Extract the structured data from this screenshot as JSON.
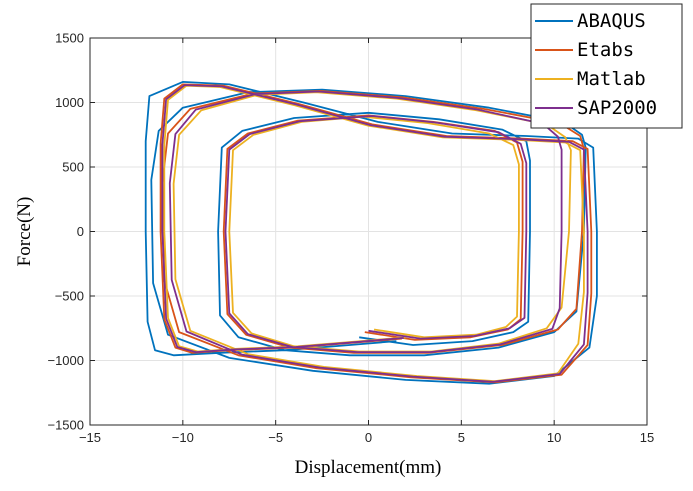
{
  "chart_data": {
    "type": "line",
    "title": "",
    "xlabel": "Displacement(mm)",
    "ylabel": "Force(N)",
    "xlim": [
      -15,
      15
    ],
    "ylim": [
      -1500,
      1500
    ],
    "xticks": [
      -15,
      -10,
      -5,
      0,
      5,
      10,
      15
    ],
    "xtick_labels": [
      "−15",
      "−10",
      "−5",
      "0",
      "5",
      "10",
      "15"
    ],
    "yticks": [
      -1500,
      -1000,
      -500,
      0,
      500,
      1000,
      1500
    ],
    "ytick_labels": [
      "−1500",
      "−1000",
      "−500",
      "0",
      "500",
      "1000",
      "1500"
    ],
    "grid": true,
    "legend_position": "top-right",
    "series": [
      {
        "name": "ABAQUS",
        "color": "#0072BD",
        "x": [
          -0.5,
          2.4,
          5.6,
          7.8,
          8.6,
          8.7,
          8.7,
          8.5,
          7.2,
          3.8,
          0.0,
          -4.0,
          -6.8,
          -7.9,
          -8.1,
          -8.0,
          -7.0,
          -4.5,
          -1.0,
          3.0,
          7.0,
          10.0,
          11.2,
          11.6,
          11.7,
          11.5,
          10.5,
          6.5,
          2.0,
          -2.5,
          -6.5,
          -10.0,
          -11.3,
          -11.7,
          -11.6,
          -10.8,
          -7.5,
          -3.0,
          2.0,
          6.5,
          10.0,
          11.9,
          12.3,
          12.3,
          12.1,
          11.3,
          8.5,
          4.5,
          0.5,
          -3.5,
          -7.5,
          -10.0,
          -11.8,
          -12.0,
          -12.0,
          -11.9,
          -11.5,
          -10.5,
          -8.0,
          -4.5,
          -1.0,
          1.5
        ],
        "y": [
          -820,
          -880,
          -850,
          -780,
          -700,
          0,
          550,
          700,
          790,
          870,
          920,
          880,
          780,
          650,
          0,
          -650,
          -820,
          -920,
          -960,
          -960,
          -900,
          -780,
          -620,
          0,
          650,
          750,
          850,
          960,
          1050,
          1100,
          1080,
          960,
          780,
          400,
          -400,
          -800,
          -980,
          -1080,
          -1150,
          -1180,
          -1120,
          -900,
          -500,
          0,
          650,
          720,
          740,
          760,
          850,
          1000,
          1140,
          1160,
          1050,
          700,
          0,
          -700,
          -920,
          -960,
          -940,
          -920,
          -880,
          -850
        ]
      },
      {
        "name": "Etabs",
        "color": "#D95319",
        "x": [
          -0.2,
          2.5,
          5.5,
          7.5,
          8.2,
          8.3,
          8.3,
          8.0,
          6.8,
          3.5,
          0.0,
          -3.8,
          -6.5,
          -7.6,
          -7.8,
          -7.6,
          -6.6,
          -4.2,
          -0.8,
          3.2,
          7.2,
          10.2,
          11.2,
          11.5,
          11.6,
          11.4,
          10.3,
          6.2,
          1.8,
          -2.6,
          -6.2,
          -9.6,
          -10.8,
          -11.1,
          -11.0,
          -10.2,
          -7.0,
          -2.8,
          2.3,
          6.8,
          10.4,
          11.8,
          12.0,
          12.0,
          11.8,
          11.0,
          8.3,
          4.2,
          0.2,
          -3.8,
          -7.8,
          -10.0,
          -11.0,
          -11.2,
          -11.2,
          -11.0,
          -10.4,
          -9.5,
          -7.5,
          -4.0,
          -0.6,
          1.8
        ],
        "y": [
          -780,
          -840,
          -820,
          -760,
          -680,
          0,
          540,
          690,
          780,
          850,
          900,
          860,
          760,
          640,
          0,
          -640,
          -800,
          -900,
          -940,
          -940,
          -880,
          -760,
          -600,
          0,
          640,
          740,
          840,
          950,
          1040,
          1090,
          1070,
          950,
          760,
          380,
          -380,
          -780,
          -960,
          -1060,
          -1130,
          -1170,
          -1110,
          -880,
          -480,
          0,
          640,
          700,
          720,
          740,
          830,
          990,
          1130,
          1140,
          1030,
          680,
          0,
          -680,
          -900,
          -940,
          -920,
          -900,
          -860,
          -830
        ]
      },
      {
        "name": "Matlab",
        "color": "#EDB120",
        "x": [
          0.3,
          3.0,
          5.8,
          7.4,
          8.0,
          8.1,
          8.1,
          7.8,
          6.5,
          3.2,
          -0.3,
          -3.6,
          -6.2,
          -7.3,
          -7.5,
          -7.3,
          -6.3,
          -4.0,
          -0.5,
          3.4,
          7.0,
          9.6,
          10.4,
          10.8,
          10.9,
          10.6,
          9.6,
          5.8,
          1.5,
          -2.8,
          -6.0,
          -9.0,
          -10.2,
          -10.5,
          -10.4,
          -9.6,
          -6.5,
          -2.4,
          2.6,
          6.8,
          10.2,
          11.3,
          11.6,
          11.6,
          11.4,
          10.6,
          8.0,
          4.0,
          0.0,
          -4.0,
          -8.0,
          -9.8,
          -10.8,
          -11.0,
          -11.0,
          -10.8,
          -10.2,
          -9.2,
          -7.2,
          -3.8,
          -0.4,
          2.0
        ],
        "y": [
          -760,
          -820,
          -800,
          -740,
          -660,
          0,
          520,
          670,
          760,
          840,
          890,
          850,
          750,
          630,
          0,
          -630,
          -790,
          -890,
          -930,
          -930,
          -870,
          -750,
          -590,
          0,
          630,
          730,
          830,
          940,
          1030,
          1080,
          1060,
          940,
          750,
          370,
          -370,
          -770,
          -950,
          -1050,
          -1120,
          -1160,
          -1100,
          -870,
          -470,
          0,
          630,
          690,
          710,
          730,
          820,
          980,
          1120,
          1130,
          1020,
          670,
          0,
          -670,
          -890,
          -930,
          -910,
          -890,
          -850,
          -820
        ]
      },
      {
        "name": "SAP2000",
        "color": "#7E2F8E",
        "x": [
          0.0,
          2.8,
          5.7,
          7.6,
          8.4,
          8.5,
          8.5,
          8.2,
          7.0,
          3.6,
          0.2,
          -3.7,
          -6.4,
          -7.5,
          -7.7,
          -7.5,
          -6.5,
          -4.1,
          -0.6,
          3.3,
          7.1,
          9.9,
          10.3,
          10.4,
          10.4,
          10.2,
          9.4,
          5.9,
          1.6,
          -2.7,
          -6.1,
          -9.3,
          -10.4,
          -10.7,
          -10.6,
          -9.8,
          -6.8,
          -2.6,
          2.4,
          6.7,
          10.3,
          11.6,
          11.8,
          11.8,
          11.6,
          10.8,
          8.2,
          4.1,
          0.1,
          -3.9,
          -7.9,
          -9.9,
          -10.9,
          -11.1,
          -11.1,
          -10.9,
          -10.3,
          -9.3,
          -7.3,
          -3.9,
          -0.5,
          1.9
        ],
        "y": [
          -770,
          -830,
          -810,
          -750,
          -670,
          0,
          530,
          680,
          770,
          845,
          895,
          855,
          755,
          635,
          0,
          -635,
          -795,
          -895,
          -935,
          -935,
          -875,
          -755,
          -595,
          0,
          635,
          735,
          835,
          945,
          1035,
          1085,
          1065,
          945,
          755,
          375,
          -375,
          -775,
          -955,
          -1055,
          -1125,
          -1165,
          -1105,
          -875,
          -475,
          0,
          635,
          695,
          715,
          735,
          825,
          985,
          1125,
          1135,
          1025,
          675,
          0,
          -675,
          -895,
          -935,
          -915,
          -895,
          -855,
          -825
        ]
      }
    ]
  }
}
